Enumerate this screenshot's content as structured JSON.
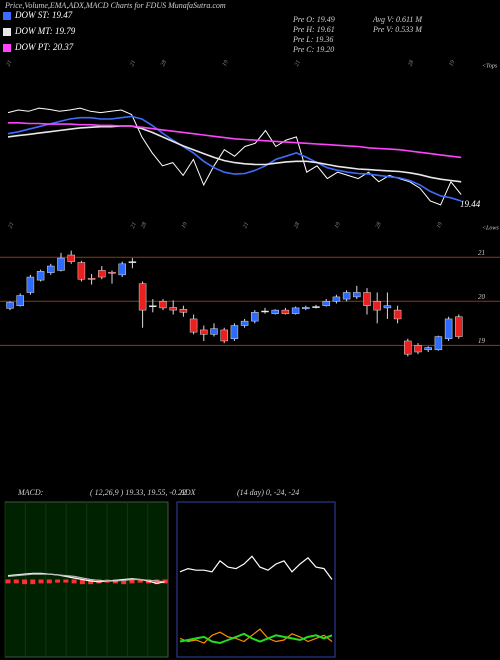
{
  "header": {
    "title": "Price,Volume,EMA,ADX,MACD Charts for FDUS MunafaSutra.com",
    "pre_o": "Pre  O: 19.49",
    "pre_h": "Pre  H: 19.61",
    "pre_l": "Pre  L: 19.36",
    "pre_c": "Pre  C: 19.20",
    "avg_v": "Avg V: 0.611 M",
    "pre_v": "Pre  V: 0.533 M",
    "tops": "<Tops",
    "lows": "<Lows"
  },
  "chart_data": [
    {
      "type": "line",
      "annotation": "19.44",
      "ylim": [
        18.97,
        21.7
      ],
      "categories": [
        "21",
        null,
        null,
        null,
        null,
        null,
        null,
        null,
        null,
        null,
        null,
        null,
        "21",
        null,
        null,
        "28",
        null,
        null,
        null,
        null,
        null,
        "19",
        null,
        null,
        null,
        null,
        null,
        null,
        "21",
        null,
        null,
        null,
        null,
        null,
        null,
        null,
        null,
        null,
        null,
        "28",
        null,
        null,
        null,
        "19",
        null
      ],
      "series": [
        {
          "color": "#ffffff",
          "values": [
            20.88,
            20.92,
            20.9,
            20.95,
            20.93,
            20.9,
            20.92,
            20.95,
            20.9,
            20.88,
            20.9,
            20.92,
            20.85,
            20.5,
            20.25,
            20.05,
            20.1,
            19.9,
            20.15,
            19.75,
            20.05,
            20.3,
            20.2,
            20.35,
            20.4,
            20.6,
            20.35,
            20.45,
            20.5,
            19.95,
            20.05,
            19.85,
            19.95,
            19.9,
            19.85,
            19.95,
            19.8,
            19.9,
            19.85,
            19.8,
            19.7,
            19.5,
            19.44,
            19.8,
            19.6
          ]
        },
        {
          "name": "DOW ST: 19.47",
          "color": "#3d6cff",
          "values": [
            20.55,
            20.58,
            20.62,
            20.66,
            20.7,
            20.74,
            20.78,
            20.8,
            20.8,
            20.78,
            20.78,
            20.8,
            20.82,
            20.78,
            20.68,
            20.56,
            20.45,
            20.35,
            20.25,
            20.12,
            20.02,
            19.95,
            19.92,
            19.93,
            19.98,
            20.05,
            20.15,
            20.2,
            20.25,
            20.18,
            20.1,
            20.02,
            19.98,
            19.95,
            19.93,
            19.92,
            19.9,
            19.88,
            19.86,
            19.82,
            19.75,
            19.65,
            19.58,
            19.55,
            19.5
          ]
        },
        {
          "name": "DOW MT: 19.79",
          "color": "#e8e8e8",
          "values": [
            20.5,
            20.52,
            20.54,
            20.56,
            20.58,
            20.6,
            20.62,
            20.64,
            20.65,
            20.66,
            20.66,
            20.67,
            20.67,
            20.63,
            20.57,
            20.5,
            20.43,
            20.36,
            20.3,
            20.24,
            20.18,
            20.13,
            20.1,
            20.08,
            20.07,
            20.07,
            20.09,
            20.11,
            20.12,
            20.12,
            20.1,
            20.07,
            20.04,
            20.02,
            20.0,
            19.99,
            19.98,
            19.97,
            19.96,
            19.94,
            19.91,
            19.87,
            19.84,
            19.82,
            19.8
          ]
        },
        {
          "name": "DOW PT: 20.37",
          "color": "#ff44ff",
          "values": [
            20.72,
            20.72,
            20.71,
            20.71,
            20.7,
            20.7,
            20.7,
            20.69,
            20.69,
            20.68,
            20.68,
            20.67,
            20.67,
            20.65,
            20.63,
            20.61,
            20.59,
            20.57,
            20.55,
            20.53,
            20.51,
            20.49,
            20.47,
            20.46,
            20.45,
            20.44,
            20.43,
            20.42,
            20.41,
            20.4,
            20.39,
            20.38,
            20.37,
            20.36,
            20.35,
            20.33,
            20.32,
            20.31,
            20.3,
            20.28,
            20.26,
            20.24,
            20.22,
            20.2,
            20.18
          ]
        }
      ]
    },
    {
      "type": "candlestick",
      "ylim": [
        18.6,
        21.3
      ],
      "yticks": [
        19,
        20,
        21
      ],
      "grid": true,
      "grid_color": "#8b3a1a",
      "up_color": "#2d6bff",
      "down_color": "#e82020",
      "categories": [
        "21",
        null,
        null,
        null,
        null,
        null,
        null,
        null,
        null,
        null,
        null,
        null,
        "21",
        "28",
        null,
        null,
        null,
        "19",
        null,
        null,
        null,
        null,
        null,
        "21",
        null,
        null,
        null,
        null,
        "28",
        null,
        null,
        null,
        "19",
        null,
        null,
        null,
        "28",
        null,
        null,
        null,
        null,
        null,
        "19",
        null,
        null
      ],
      "open": [
        19.84,
        19.9,
        20.2,
        20.48,
        20.65,
        20.7,
        21.05,
        20.88,
        20.52,
        20.7,
        20.66,
        20.6,
        20.9,
        20.4,
        19.9,
        20.0,
        19.86,
        19.82,
        19.6,
        19.35,
        19.25,
        19.35,
        19.15,
        19.45,
        19.55,
        19.78,
        19.72,
        19.8,
        19.72,
        19.83,
        19.88,
        19.9,
        20.0,
        20.05,
        20.1,
        20.2,
        20.0,
        19.85,
        19.8,
        19.1,
        19.0,
        18.9,
        18.9,
        19.15,
        19.65
      ],
      "high": [
        20.0,
        20.18,
        20.6,
        20.72,
        20.85,
        21.1,
        21.15,
        20.92,
        20.62,
        20.8,
        20.7,
        20.9,
        20.98,
        20.45,
        20.05,
        20.05,
        20.02,
        19.9,
        19.7,
        19.45,
        19.5,
        19.4,
        19.5,
        19.6,
        19.8,
        19.85,
        19.82,
        19.85,
        19.88,
        19.9,
        19.92,
        20.05,
        20.15,
        20.25,
        20.35,
        20.3,
        20.2,
        20.2,
        19.9,
        19.15,
        19.05,
        18.98,
        19.22,
        19.65,
        19.7
      ],
      "low": [
        19.8,
        19.88,
        20.15,
        20.45,
        20.6,
        20.68,
        20.85,
        20.45,
        20.38,
        20.5,
        20.4,
        20.55,
        20.75,
        19.4,
        19.75,
        19.8,
        19.7,
        19.65,
        19.25,
        19.1,
        19.2,
        19.05,
        19.1,
        19.4,
        19.5,
        19.72,
        19.7,
        19.7,
        19.7,
        19.8,
        19.84,
        19.88,
        19.95,
        20.0,
        20.05,
        19.7,
        19.5,
        19.6,
        19.5,
        18.75,
        18.8,
        18.85,
        18.88,
        19.1,
        19.15
      ],
      "close": [
        19.98,
        20.13,
        20.55,
        20.68,
        20.8,
        20.98,
        20.9,
        20.5,
        20.5,
        20.55,
        20.64,
        20.85,
        20.9,
        19.8,
        19.9,
        19.85,
        19.8,
        19.75,
        19.3,
        19.25,
        19.38,
        19.1,
        19.45,
        19.55,
        19.75,
        19.78,
        19.8,
        19.72,
        19.85,
        19.86,
        19.88,
        20.0,
        20.1,
        20.2,
        20.2,
        19.9,
        19.8,
        19.9,
        19.6,
        18.8,
        18.85,
        18.95,
        19.2,
        19.6,
        19.2
      ]
    },
    {
      "type": "macd",
      "label": "MACD:",
      "params": "( 12,26,9 )  19.33,  19.55,  -0.22",
      "ylim": [
        -1,
        1
      ],
      "series": [
        {
          "color": "#ffffff",
          "values": [
            0.05,
            0.06,
            0.07,
            0.08,
            0.08,
            0.07,
            0.06,
            0.04,
            0.02,
            0.0,
            -0.02,
            -0.03,
            -0.02,
            -0.01,
            0.0,
            0.01,
            0.0,
            -0.02,
            -0.05,
            -0.03
          ]
        },
        {
          "color": "#bbbbbb",
          "values": [
            0.04,
            0.05,
            0.06,
            0.07,
            0.07,
            0.07,
            0.06,
            0.05,
            0.04,
            0.02,
            0.0,
            -0.01,
            -0.02,
            -0.02,
            -0.01,
            0.0,
            0.0,
            -0.01,
            -0.02,
            -0.03
          ]
        }
      ],
      "histogram": {
        "color": "#ff3030",
        "values": [
          -0.05,
          -0.05,
          -0.06,
          -0.06,
          -0.05,
          -0.05,
          -0.04,
          -0.04,
          -0.05,
          -0.06,
          -0.06,
          -0.05,
          -0.04,
          -0.05,
          -0.06,
          -0.05,
          -0.04,
          -0.05,
          -0.06,
          -0.05
        ]
      }
    },
    {
      "type": "adx",
      "label": "ADX",
      "params": "(14 day) 0,  -24,  -24",
      "ylim": [
        0,
        100
      ],
      "series": [
        {
          "color": "#ffffff",
          "values": [
            55,
            57,
            56,
            56,
            55,
            62,
            58,
            57,
            60,
            65,
            58,
            56,
            60,
            62,
            55,
            60,
            64,
            58,
            57,
            50
          ]
        },
        {
          "color": "#ff8c00",
          "values": [
            12,
            10,
            11,
            9,
            14,
            16,
            13,
            12,
            10,
            14,
            18,
            12,
            10,
            11,
            15,
            13,
            10,
            12,
            14,
            10
          ]
        },
        {
          "color": "#22dd22",
          "values": [
            10,
            11,
            12,
            13,
            10,
            9,
            11,
            13,
            15,
            12,
            10,
            12,
            14,
            13,
            12,
            11,
            13,
            14,
            12,
            14
          ]
        }
      ]
    }
  ]
}
